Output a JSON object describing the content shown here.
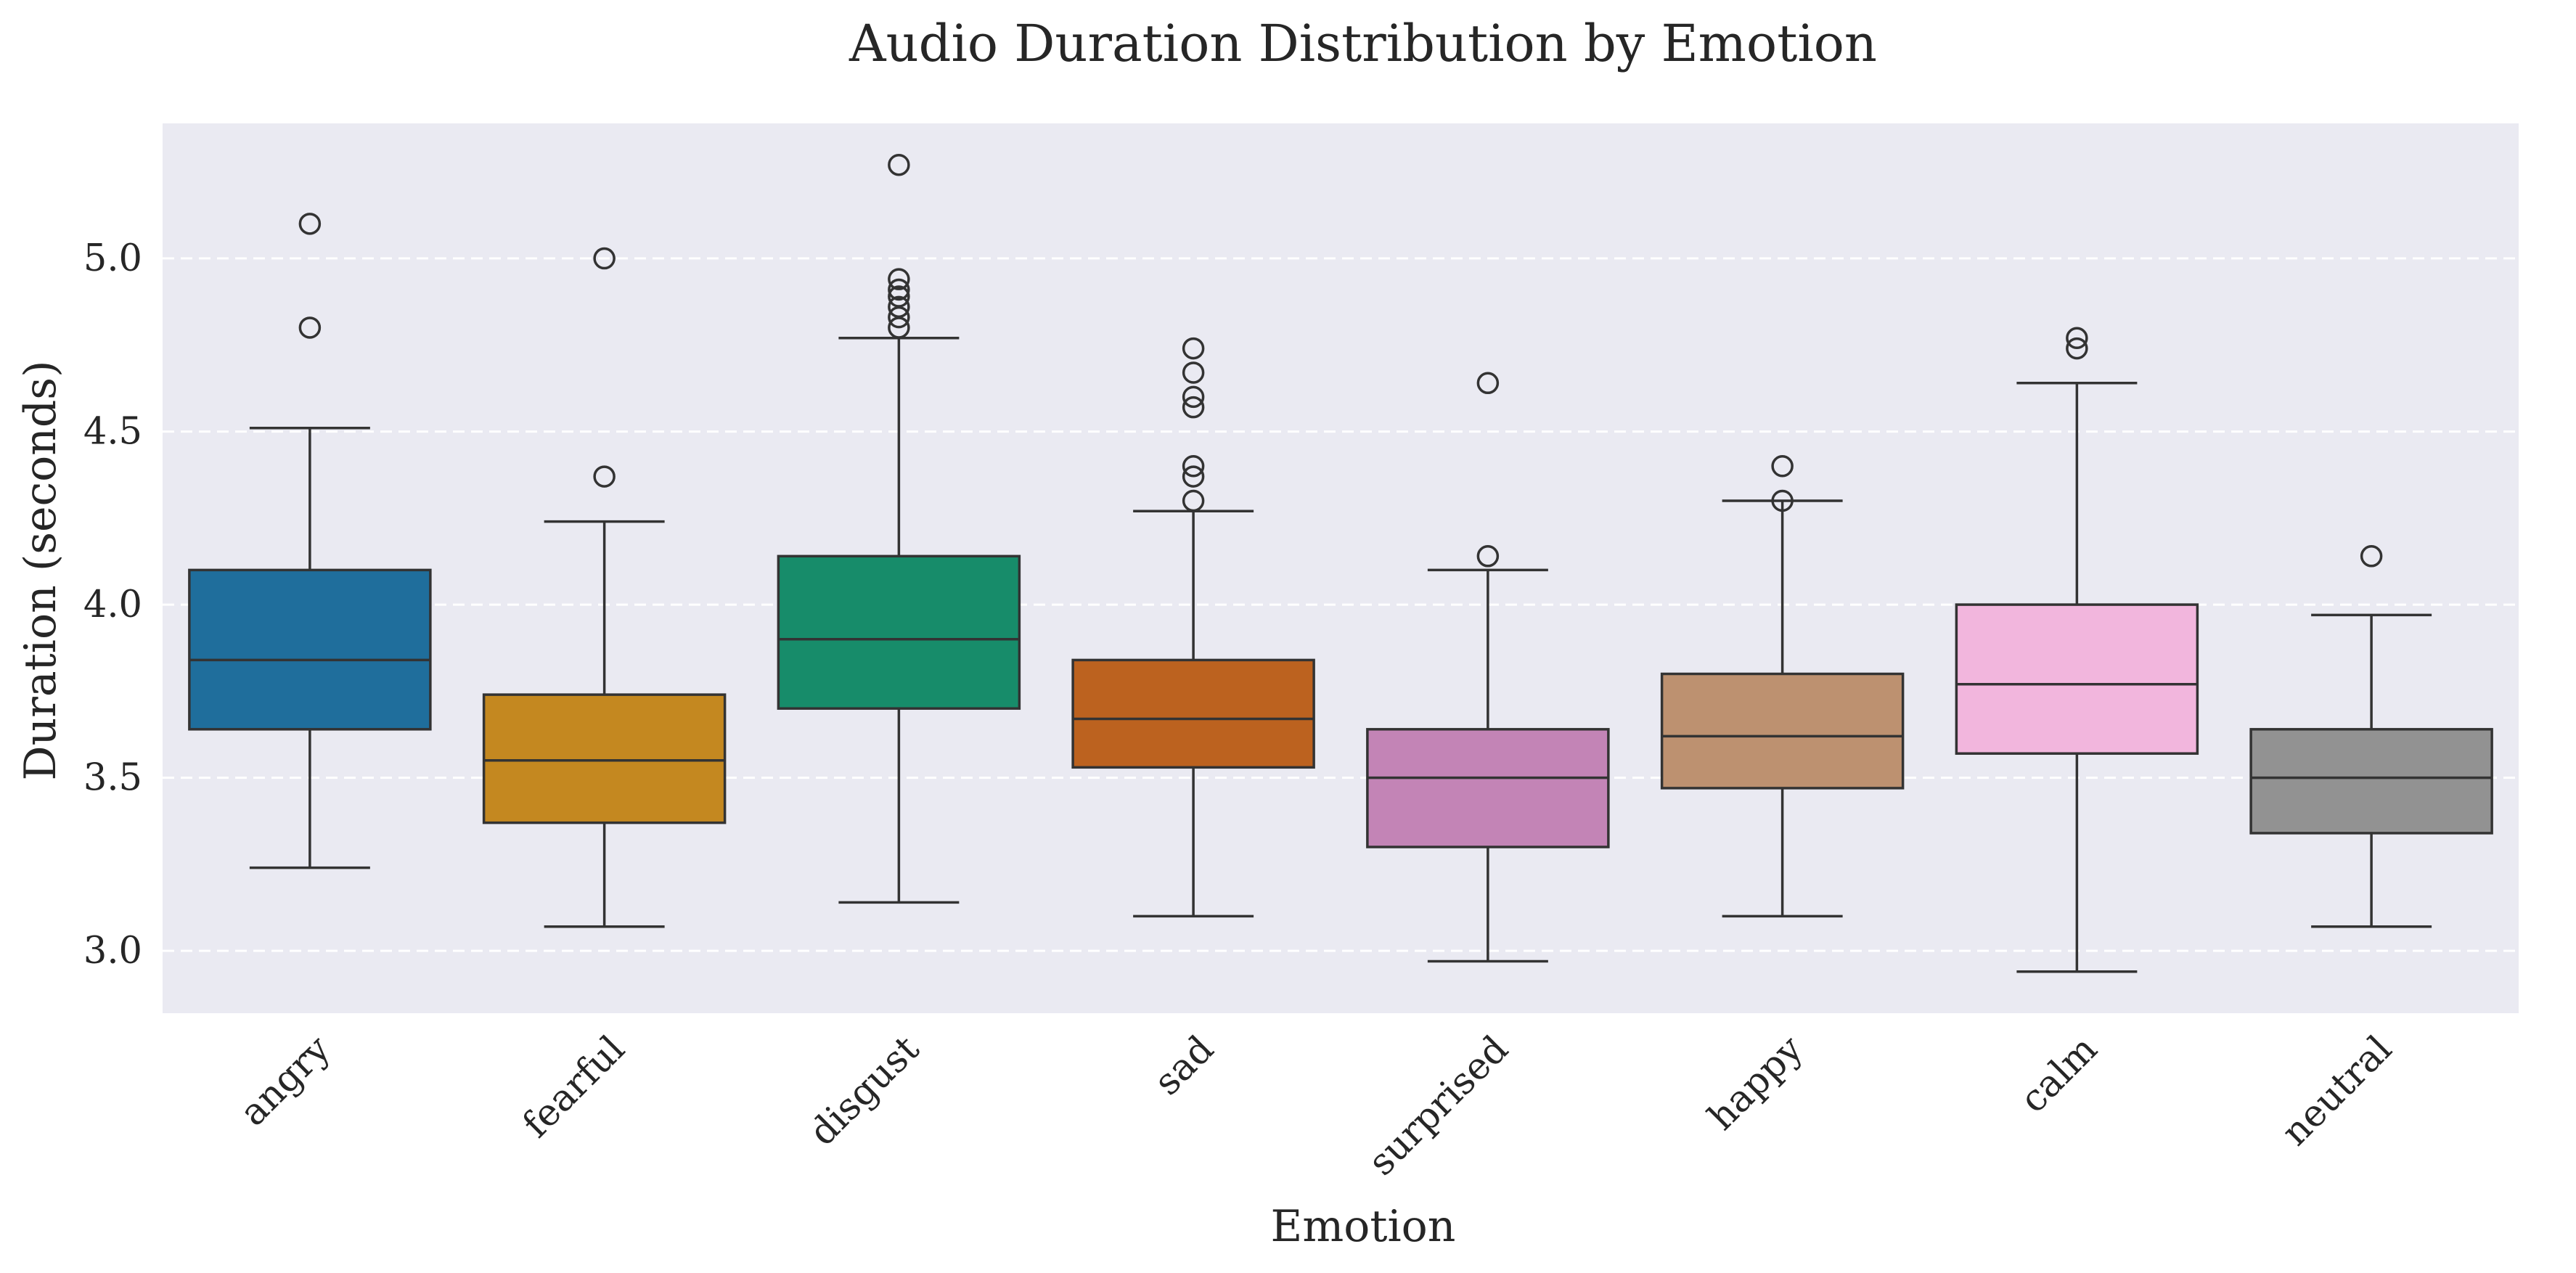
{
  "chart_data": {
    "type": "boxplot",
    "title": "Audio Duration Distribution by Emotion",
    "xlabel": "Emotion",
    "ylabel": "Duration (seconds)",
    "ylim": [
      2.82,
      5.39
    ],
    "yticks": [
      3.0,
      3.5,
      4.0,
      4.5,
      5.0
    ],
    "ytick_labels": [
      "3.0",
      "3.5",
      "4.0",
      "4.5",
      "5.0"
    ],
    "grid": "y-dashed",
    "background_color": "#eaeaf2",
    "categories": [
      "angry",
      "fearful",
      "disgust",
      "sad",
      "surprised",
      "happy",
      "calm",
      "neutral"
    ],
    "colors": [
      "#1f6e9c",
      "#c48820",
      "#178c6a",
      "#bc621f",
      "#c384b6",
      "#bd9170",
      "#f2b6dd",
      "#929292"
    ],
    "boxes": [
      {
        "category": "angry",
        "whisker_low": 3.24,
        "q1": 3.64,
        "median": 3.84,
        "q3": 4.1,
        "whisker_high": 4.51,
        "outliers": [
          4.8,
          5.1
        ]
      },
      {
        "category": "fearful",
        "whisker_low": 3.07,
        "q1": 3.37,
        "median": 3.55,
        "q3": 3.74,
        "whisker_high": 4.24,
        "outliers": [
          4.37,
          5.0
        ]
      },
      {
        "category": "disgust",
        "whisker_low": 3.14,
        "q1": 3.7,
        "median": 3.9,
        "q3": 4.14,
        "whisker_high": 4.77,
        "outliers": [
          4.8,
          4.83,
          4.86,
          4.89,
          4.91,
          4.94,
          5.27
        ]
      },
      {
        "category": "sad",
        "whisker_low": 3.1,
        "q1": 3.53,
        "median": 3.67,
        "q3": 3.84,
        "whisker_high": 4.27,
        "outliers": [
          4.3,
          4.37,
          4.4,
          4.57,
          4.6,
          4.67,
          4.74
        ]
      },
      {
        "category": "surprised",
        "whisker_low": 2.97,
        "q1": 3.3,
        "median": 3.5,
        "q3": 3.64,
        "whisker_high": 4.1,
        "outliers": [
          4.14,
          4.64
        ]
      },
      {
        "category": "happy",
        "whisker_low": 3.1,
        "q1": 3.47,
        "median": 3.62,
        "q3": 3.8,
        "whisker_high": 4.3,
        "outliers": [
          4.3,
          4.4
        ]
      },
      {
        "category": "calm",
        "whisker_low": 2.94,
        "q1": 3.57,
        "median": 3.77,
        "q3": 4.0,
        "whisker_high": 4.64,
        "outliers": [
          4.74,
          4.77
        ]
      },
      {
        "category": "neutral",
        "whisker_low": 3.07,
        "q1": 3.34,
        "median": 3.5,
        "q3": 3.64,
        "whisker_high": 3.97,
        "outliers": [
          4.14
        ]
      }
    ]
  }
}
